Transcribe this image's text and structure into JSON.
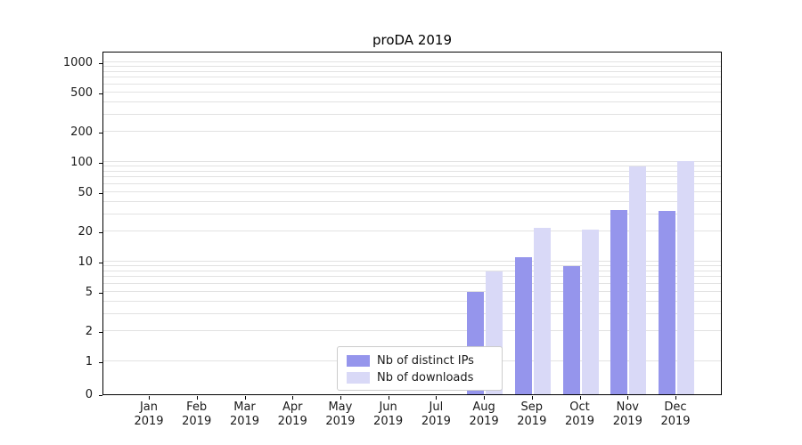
{
  "chart_data": {
    "type": "bar",
    "title": "proDA 2019",
    "categories": [
      "Jan\n2019",
      "Feb\n2019",
      "Mar\n2019",
      "Apr\n2019",
      "May\n2019",
      "Jun\n2019",
      "Jul\n2019",
      "Aug\n2019",
      "Sep\n2019",
      "Oct\n2019",
      "Nov\n2019",
      "Dec\n2019"
    ],
    "series": [
      {
        "name": "Nb of distinct IPs",
        "color": "#9595ec",
        "values": [
          0,
          0,
          0,
          0,
          0,
          0,
          0,
          5,
          11,
          9,
          33,
          32
        ]
      },
      {
        "name": "Nb of downloads",
        "color": "#d9d9f7",
        "values": [
          0,
          0,
          0,
          0,
          0,
          0,
          0,
          8,
          22,
          21,
          90,
          102
        ]
      }
    ],
    "xlabel": "",
    "ylabel": "",
    "yscale": "symlog",
    "yticks": [
      0,
      1,
      2,
      5,
      10,
      20,
      50,
      100,
      200,
      500,
      1000
    ],
    "ylim": [
      0,
      1334
    ],
    "grid": "horizontal",
    "legend_position": "lower-center-inside"
  }
}
